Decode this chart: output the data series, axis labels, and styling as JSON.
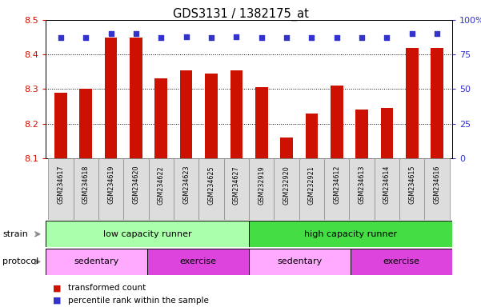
{
  "title": "GDS3131 / 1382175_at",
  "samples": [
    "GSM234617",
    "GSM234618",
    "GSM234619",
    "GSM234620",
    "GSM234622",
    "GSM234623",
    "GSM234625",
    "GSM234627",
    "GSM232919",
    "GSM232920",
    "GSM232921",
    "GSM234612",
    "GSM234613",
    "GSM234614",
    "GSM234615",
    "GSM234616"
  ],
  "transformed_count": [
    8.29,
    8.3,
    8.45,
    8.45,
    8.33,
    8.355,
    8.345,
    8.355,
    8.305,
    8.16,
    8.23,
    8.31,
    8.24,
    8.245,
    8.42,
    8.42
  ],
  "percentile_rank": [
    87,
    87,
    90,
    90,
    87,
    88,
    87,
    88,
    87,
    87,
    87,
    87,
    87,
    87,
    90,
    90
  ],
  "ylim_left": [
    8.1,
    8.5
  ],
  "ylim_right": [
    0,
    100
  ],
  "yticks_left": [
    8.1,
    8.2,
    8.3,
    8.4,
    8.5
  ],
  "yticks_right": [
    0,
    25,
    50,
    75,
    100
  ],
  "bar_color": "#cc1100",
  "dot_color": "#3333cc",
  "bar_width": 0.5,
  "strain_labels": [
    {
      "text": "low capacity runner",
      "start": 0,
      "end": 8,
      "color": "#aaffaa"
    },
    {
      "text": "high capacity runner",
      "start": 8,
      "end": 16,
      "color": "#44dd44"
    }
  ],
  "protocol_labels": [
    {
      "text": "sedentary",
      "start": 0,
      "end": 4,
      "color": "#ffaaff"
    },
    {
      "text": "exercise",
      "start": 4,
      "end": 8,
      "color": "#dd44dd"
    },
    {
      "text": "sedentary",
      "start": 8,
      "end": 12,
      "color": "#ffaaff"
    },
    {
      "text": "exercise",
      "start": 12,
      "end": 16,
      "color": "#dd44dd"
    }
  ],
  "legend_items": [
    {
      "label": "transformed count",
      "color": "#cc1100"
    },
    {
      "label": "percentile rank within the sample",
      "color": "#3333cc"
    }
  ],
  "strain_label": "strain",
  "protocol_label": "protocol",
  "bg_color": "#ffffff",
  "tick_label_color_left": "#cc1100",
  "tick_label_color_right": "#3333cc",
  "xtick_bg": "#dddddd",
  "xtick_border": "#888888"
}
